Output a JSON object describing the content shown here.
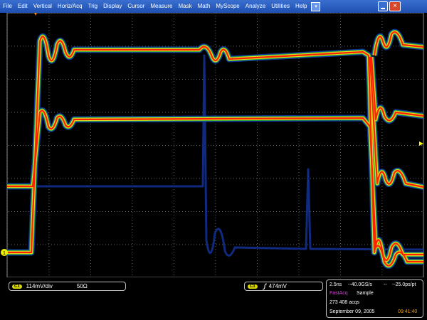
{
  "menu": [
    "File",
    "Edit",
    "Vertical",
    "Horiz/Acq",
    "Trig",
    "Display",
    "Cursor",
    "Measure",
    "Mask",
    "Math",
    "MyScope",
    "Analyze",
    "Utilities",
    "Help"
  ],
  "screen": {
    "channel_marker": "1"
  },
  "channel_readout": {
    "channel": "C1",
    "scale": "114mV/div",
    "impedance": "50Ω"
  },
  "trigger_readout": {
    "channel": "C1",
    "level": "474mV"
  },
  "acquisition": {
    "time_div": "2.5ns",
    "sample_rate": "--40.0GS/s",
    "separator": "--",
    "resolution": "--25.0ps/pt",
    "mode": "FastAcq",
    "sampling": "Sample",
    "count": "273 408 acqs",
    "date": "September 09, 2005",
    "time": "09:41:40"
  }
}
